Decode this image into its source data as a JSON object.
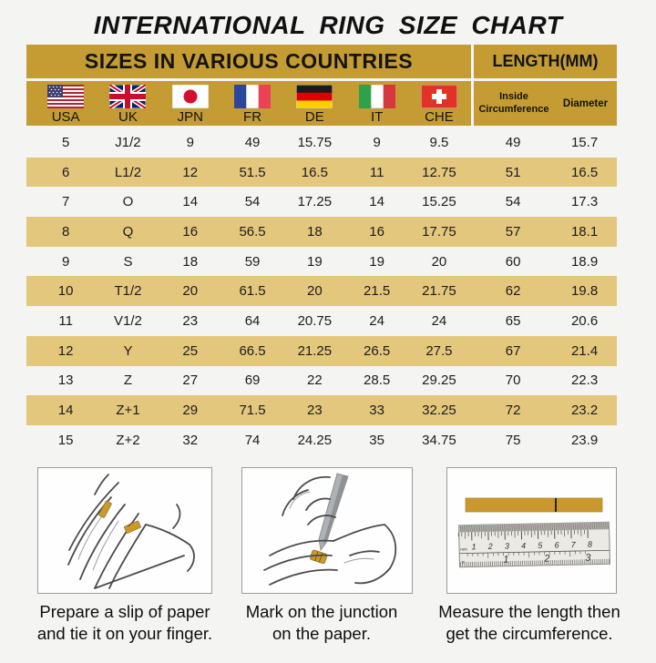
{
  "title": "INTERNATIONAL RING SIZE CHART",
  "colors": {
    "page_bg": "#F4F4F3",
    "gold_header": "#C49C33",
    "gold_stripe": "#E3C77C",
    "slip_gold": "#C9992D",
    "text": "#141414"
  },
  "table": {
    "header_countries": "SIZES IN VARIOUS COUNTRIES",
    "header_length": "LENGTH(MM)",
    "countries": [
      "USA",
      "UK",
      "JPN",
      "FR",
      "DE",
      "IT",
      "CHE"
    ],
    "length_columns": [
      "Inside Circumference",
      "Diameter"
    ],
    "rows": [
      [
        "5",
        "J1/2",
        "9",
        "49",
        "15.75",
        "9",
        "9.5",
        "49",
        "15.7"
      ],
      [
        "6",
        "L1/2",
        "12",
        "51.5",
        "16.5",
        "11",
        "12.75",
        "51",
        "16.5"
      ],
      [
        "7",
        "O",
        "14",
        "54",
        "17.25",
        "14",
        "15.25",
        "54",
        "17.3"
      ],
      [
        "8",
        "Q",
        "16",
        "56.5",
        "18",
        "16",
        "17.75",
        "57",
        "18.1"
      ],
      [
        "9",
        "S",
        "18",
        "59",
        "19",
        "19",
        "20",
        "60",
        "18.9"
      ],
      [
        "10",
        "T1/2",
        "20",
        "61.5",
        "20",
        "21.5",
        "21.75",
        "62",
        "19.8"
      ],
      [
        "11",
        "V1/2",
        "23",
        "64",
        "20.75",
        "24",
        "24",
        "65",
        "20.6"
      ],
      [
        "12",
        "Y",
        "25",
        "66.5",
        "21.25",
        "26.5",
        "27.5",
        "67",
        "21.4"
      ],
      [
        "13",
        "Z",
        "27",
        "69",
        "22",
        "28.5",
        "29.25",
        "70",
        "22.3"
      ],
      [
        "14",
        "Z+1",
        "29",
        "71.5",
        "23",
        "33",
        "32.25",
        "72",
        "23.2"
      ],
      [
        "15",
        "Z+2",
        "32",
        "74",
        "24.25",
        "35",
        "34.75",
        "75",
        "23.9"
      ]
    ]
  },
  "instructions": [
    {
      "line1": "Prepare a slip of paper",
      "line2": "and tie it on your finger."
    },
    {
      "line1": "Mark on the junction",
      "line2": "on the paper."
    },
    {
      "line1": "Measure the length then",
      "line2": "get the circumference."
    }
  ],
  "ruler": {
    "unit_top": "mm",
    "cm_numbers": [
      "1",
      "2",
      "3",
      "4",
      "5",
      "6",
      "7",
      "8"
    ],
    "unit_bottom": "in",
    "inch_numbers": [
      "1",
      "2",
      "3"
    ]
  }
}
